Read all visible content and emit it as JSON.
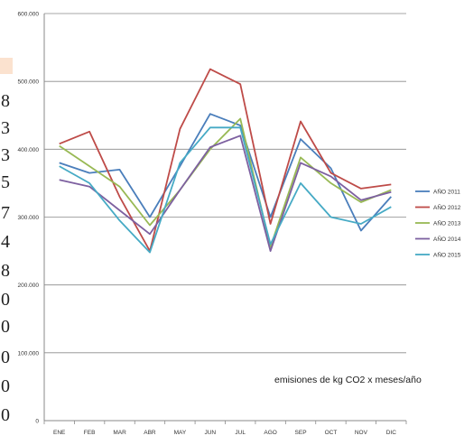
{
  "left_strip_digits": [
    "8",
    "3",
    "3",
    "5",
    "7",
    "4",
    "8",
    "0",
    "0",
    "0",
    "0",
    "0"
  ],
  "chart_data": {
    "type": "line",
    "title": "emisiones de kg CO2 x meses/año",
    "xlabel": "",
    "ylabel": "",
    "categories": [
      "ENE",
      "FEB",
      "MAR",
      "ABR",
      "MAY",
      "JUN",
      "JUL",
      "AGO",
      "SEP",
      "OCT",
      "NOV",
      "DIC"
    ],
    "yticks": [
      "0",
      "100.000",
      "200.000",
      "300.000",
      "400.000",
      "500.000",
      "600.000"
    ],
    "ylim": [
      0,
      600000
    ],
    "grid": true,
    "legend_position": "right",
    "series": [
      {
        "name": "AÑO 2011",
        "color": "#4a7ebb",
        "values": [
          380000,
          365000,
          370000,
          300000,
          375000,
          452000,
          435000,
          300000,
          415000,
          372000,
          280000,
          330000
        ]
      },
      {
        "name": "AÑO 2012",
        "color": "#be4b48",
        "values": [
          408000,
          426000,
          330000,
          250000,
          430000,
          518000,
          496000,
          290000,
          441000,
          365000,
          342000,
          348000
        ]
      },
      {
        "name": "AÑO 2013",
        "color": "#98b954",
        "values": [
          405000,
          375000,
          345000,
          288000,
          340000,
          400000,
          445000,
          256000,
          388000,
          350000,
          322000,
          340000
        ]
      },
      {
        "name": "AÑO 2014",
        "color": "#7d60a0",
        "values": [
          355000,
          345000,
          310000,
          275000,
          340000,
          403000,
          420000,
          250000,
          380000,
          360000,
          325000,
          337000
        ]
      },
      {
        "name": "AÑO 2015",
        "color": "#46aac5",
        "values": [
          375000,
          350000,
          295000,
          248000,
          380000,
          432000,
          432000,
          260000,
          350000,
          300000,
          290000,
          315000
        ]
      }
    ]
  }
}
